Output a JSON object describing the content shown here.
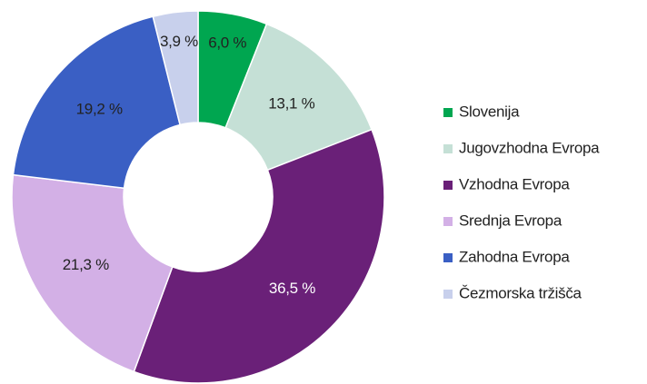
{
  "chart_data": {
    "type": "donut",
    "categories": [
      "Slovenija",
      "Jugovzhodna Evropa",
      "Vzhodna Evropa",
      "Srednja Evropa",
      "Zahodna Evropa",
      "Čezmorska tržišča"
    ],
    "values": [
      6.0,
      13.1,
      36.5,
      21.3,
      19.2,
      3.9
    ],
    "value_labels": [
      "6,0 %",
      "13,1 %",
      "36,5 %",
      "21,3 %",
      "19,2 %",
      "3,9 %"
    ],
    "colors": [
      "#00a650",
      "#c5e0d6",
      "#6a2078",
      "#d3b0e6",
      "#3a5fc4",
      "#c8d0ec"
    ],
    "legend": "right"
  }
}
